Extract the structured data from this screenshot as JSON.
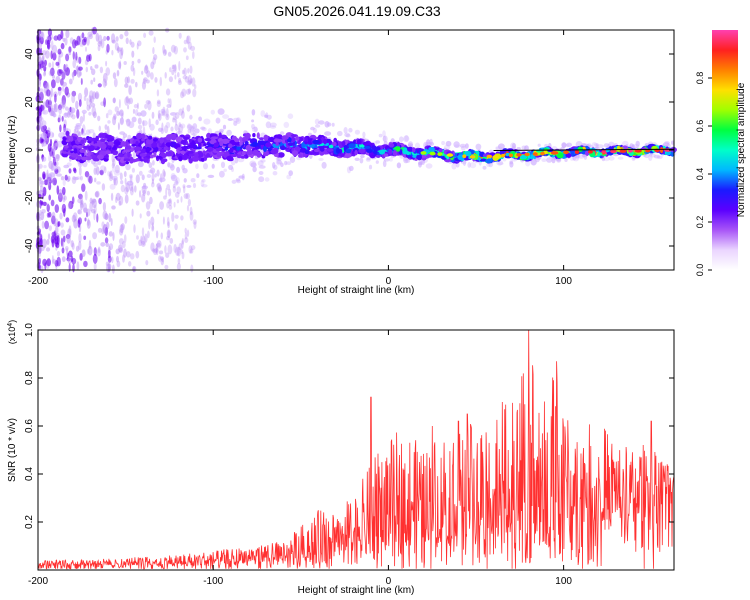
{
  "title": "GN05.2026.041.19.09.C33",
  "chart_data": [
    {
      "type": "heatmap",
      "xlabel": "Height of straight line (km)",
      "ylabel": "Frequency (Hz)",
      "xlim": [
        -200,
        163
      ],
      "ylim": [
        -50,
        50
      ],
      "xticks": [
        -200,
        -100,
        0,
        100
      ],
      "yticks": [
        -40,
        -20,
        0,
        20,
        40
      ],
      "colorbar": {
        "label": "Normalized spectral amplitude",
        "range": [
          0,
          1
        ],
        "ticks": [
          "0.0",
          "0.2",
          "0.4",
          "0.6",
          "0.8"
        ],
        "colors": [
          "#ffffff",
          "#ead5ff",
          "#a855f7",
          "#5b00ff",
          "#1a1aff",
          "#00b8ff",
          "#00ffc8",
          "#00ff40",
          "#a0ff00",
          "#ffe000",
          "#ff8000",
          "#ff2020",
          "#ff40b0"
        ]
      },
      "signal_band": {
        "center_hz": [
          [
            -200,
            2
          ],
          [
            -150,
            0
          ],
          [
            -100,
            1
          ],
          [
            -50,
            2
          ],
          [
            0,
            0
          ],
          [
            50,
            -3
          ],
          [
            100,
            -1
          ],
          [
            163,
            0
          ]
        ],
        "halfwidth_hz": [
          [
            -200,
            5
          ],
          [
            -100,
            5
          ],
          [
            -50,
            4
          ],
          [
            0,
            2
          ],
          [
            50,
            1.5
          ],
          [
            100,
            1
          ],
          [
            163,
            1
          ]
        ],
        "amplitude": [
          [
            -200,
            0.2
          ],
          [
            -100,
            0.3
          ],
          [
            -50,
            0.4
          ],
          [
            0,
            0.5
          ],
          [
            50,
            0.75
          ],
          [
            100,
            0.85
          ],
          [
            163,
            0.9
          ]
        ]
      },
      "noise_extent_km": -110
    },
    {
      "type": "line",
      "xlabel": "Height of straight line (km)",
      "ylabel": "SNR (10 * v/v)",
      "y_multiplier": "(x10",
      "y_multiplier_exp": "4",
      "y_multiplier_close": ")",
      "xlim": [
        -200,
        163
      ],
      "ylim": [
        0,
        1.0
      ],
      "xticks": [
        -200,
        -100,
        0,
        100
      ],
      "yticks": [
        "0.2",
        "0.4",
        "0.6",
        "0.8",
        "1.0"
      ],
      "color": "#ff3030",
      "envelope": {
        "x": [
          -200,
          -150,
          -100,
          -80,
          -60,
          -40,
          -20,
          -10,
          0,
          10,
          20,
          30,
          40,
          50,
          60,
          70,
          75,
          80,
          85,
          90,
          95,
          100,
          110,
          120,
          130,
          140,
          150,
          163
        ],
        "base": [
          0.02,
          0.02,
          0.02,
          0.03,
          0.04,
          0.06,
          0.08,
          0.1,
          0.12,
          0.12,
          0.12,
          0.13,
          0.14,
          0.14,
          0.15,
          0.15,
          0.15,
          0.15,
          0.15,
          0.15,
          0.15,
          0.18,
          0.2,
          0.2,
          0.22,
          0.22,
          0.25,
          0.3
        ],
        "peak": [
          0.04,
          0.05,
          0.08,
          0.1,
          0.12,
          0.25,
          0.3,
          0.45,
          0.55,
          0.6,
          0.5,
          0.6,
          0.6,
          0.62,
          0.68,
          0.7,
          0.75,
          1.0,
          0.75,
          0.7,
          0.85,
          0.65,
          0.6,
          0.62,
          0.55,
          0.5,
          0.55,
          0.4
        ]
      },
      "spikes": [
        [
          -10,
          0.72
        ],
        [
          25,
          0.6
        ],
        [
          40,
          0.62
        ],
        [
          45,
          0.65
        ],
        [
          65,
          0.7
        ],
        [
          80,
          1.0
        ],
        [
          96,
          0.87
        ],
        [
          150,
          0.62
        ]
      ]
    }
  ]
}
